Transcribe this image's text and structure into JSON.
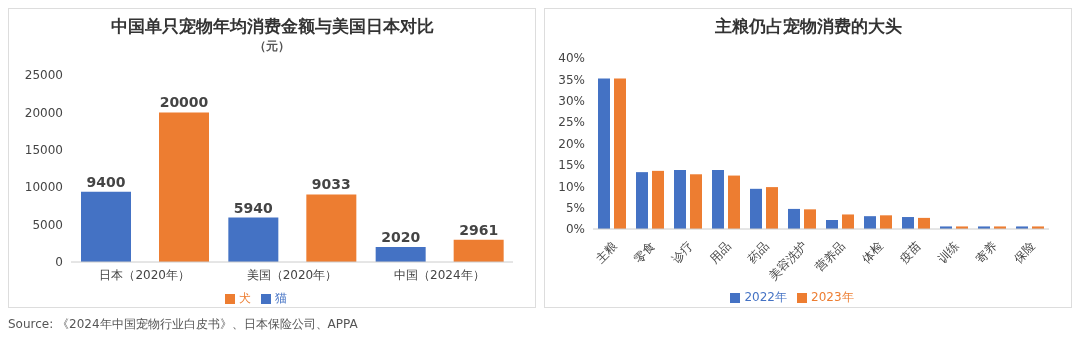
{
  "chart_data": [
    {
      "type": "bar",
      "title": "中国单只宠物年均消费金额与美国日本对比",
      "subtitle": "（元）",
      "categories": [
        "日本（2020年）",
        "美国（2020年）",
        "中国（2024年）"
      ],
      "series": [
        {
          "name": "猫",
          "color": "#4472c4",
          "values": [
            9400,
            5940,
            2020
          ]
        },
        {
          "name": "犬",
          "color": "#ed7d31",
          "values": [
            20000,
            9033,
            2961
          ]
        }
      ],
      "ylim": [
        0,
        25000
      ],
      "yticks": [
        0,
        5000,
        10000,
        15000,
        20000,
        25000
      ],
      "data_labels": true,
      "legend": "bottom",
      "grid": false,
      "annotations": [
        "Source: 《2024年中国宠物行业白皮书》、日本保险公司、APPA"
      ]
    },
    {
      "type": "bar",
      "title": "主粮仍占宠物消费的大头",
      "categories": [
        "主粮",
        "零食",
        "诊疗",
        "用品",
        "药品",
        "美容洗护",
        "营养品",
        "体检",
        "疫苗",
        "训练",
        "寄养",
        "保险"
      ],
      "series": [
        {
          "name": "2022年",
          "color": "#4472c4",
          "values": [
            35.2,
            13.3,
            13.8,
            13.8,
            9.4,
            4.7,
            2.1,
            3.0,
            2.8,
            0.6,
            0.6,
            0.6
          ]
        },
        {
          "name": "2023年",
          "color": "#ed7d31",
          "values": [
            35.2,
            13.6,
            12.8,
            12.5,
            9.8,
            4.6,
            3.4,
            3.2,
            2.6,
            0.6,
            0.6,
            0.6
          ]
        }
      ],
      "ylim": [
        0,
        40
      ],
      "yticks": [
        {
          "value": 0,
          "label": "0%"
        },
        {
          "value": 5,
          "label": "5%"
        },
        {
          "value": 10,
          "label": "10%"
        },
        {
          "value": 15,
          "label": "15%"
        },
        {
          "value": 20,
          "label": "20%"
        },
        {
          "value": 25,
          "label": "25%"
        },
        {
          "value": 30,
          "label": "30%"
        },
        {
          "value": 35,
          "label": "35%"
        },
        {
          "value": 40,
          "label": "40%"
        }
      ],
      "legend": "bottom",
      "grid": false
    }
  ]
}
